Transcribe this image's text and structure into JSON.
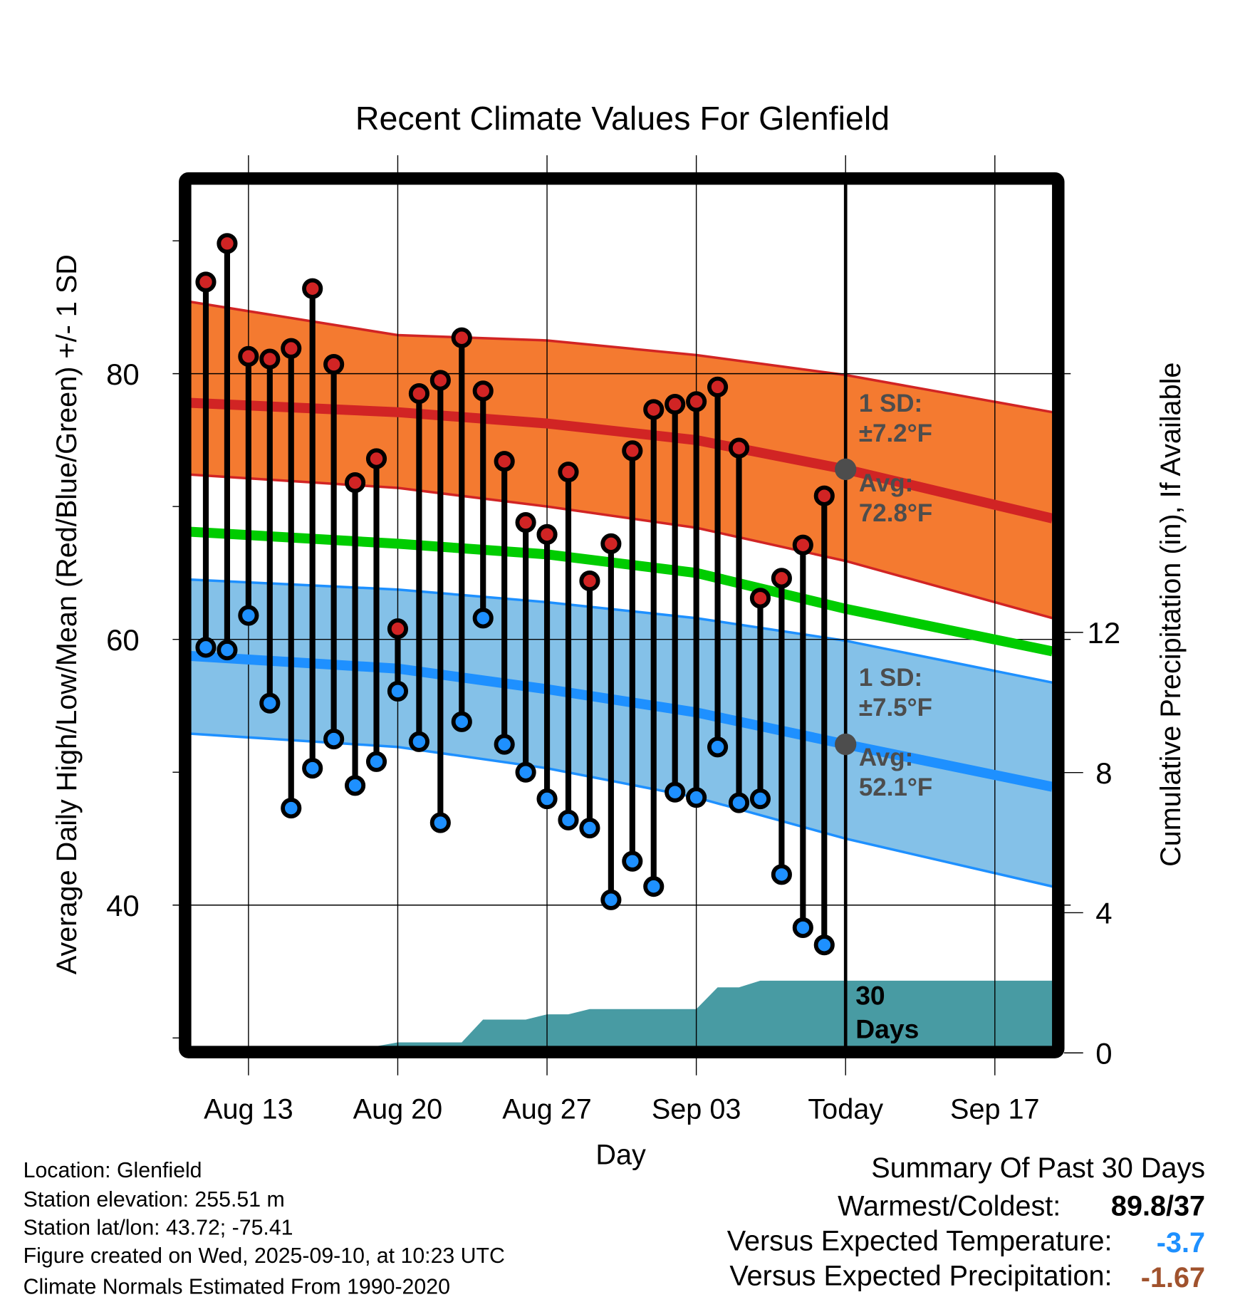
{
  "chart_data": {
    "type": "line",
    "title": "Recent Climate Values For Glenfield",
    "xlabel": "Day",
    "ylabel": "Average Daily High/Low/Mean (Red/Blue/Green) +/- 1 SD",
    "y2label": "Cumulative Precipitation (in), If Available",
    "xlim_days_from_today": [
      -30.7,
      9.7
    ],
    "ylim": [
      29.4,
      94.3
    ],
    "y2lim": [
      0,
      24.8
    ],
    "grid": true,
    "x_ticks": [
      {
        "day": -28,
        "label": "Aug 13"
      },
      {
        "day": -21,
        "label": "Aug 20"
      },
      {
        "day": -14,
        "label": "Aug 27"
      },
      {
        "day": -7,
        "label": "Sep 03"
      },
      {
        "day": 0,
        "label": "Today"
      },
      {
        "day": 7,
        "label": "Sep 17"
      }
    ],
    "y_ticks": [
      {
        "value": 40,
        "label": "40"
      },
      {
        "value": 60,
        "label": "60"
      },
      {
        "value": 80,
        "label": "80"
      }
    ],
    "y_minor_ticks": [
      30,
      50,
      70,
      90
    ],
    "y2_ticks": [
      {
        "value": 0,
        "label": "0"
      },
      {
        "value": 4,
        "label": "4"
      },
      {
        "value": 8,
        "label": "8"
      },
      {
        "value": 12,
        "label": "12"
      }
    ],
    "daily": {
      "days_from_today": [
        -30,
        -29,
        -28,
        -27,
        -26,
        -25,
        -24,
        -23,
        -22,
        -21,
        -20,
        -19,
        -18,
        -17,
        -16,
        -15,
        -14,
        -13,
        -12,
        -11,
        -10,
        -9,
        -8,
        -7,
        -6,
        -5,
        -4,
        -3,
        -2,
        -1
      ],
      "high": [
        86.9,
        89.8,
        81.3,
        81.1,
        81.9,
        86.4,
        80.7,
        71.8,
        73.6,
        60.8,
        78.5,
        79.5,
        82.7,
        78.7,
        73.4,
        68.8,
        67.9,
        72.6,
        64.4,
        67.2,
        74.2,
        77.3,
        77.7,
        77.9,
        79.0,
        74.4,
        63.1,
        64.6,
        67.1,
        70.8
      ],
      "low": [
        59.4,
        59.2,
        61.8,
        55.2,
        47.3,
        50.3,
        52.5,
        49.0,
        50.8,
        56.1,
        52.3,
        46.2,
        53.8,
        61.6,
        52.1,
        50.0,
        48.0,
        46.4,
        45.8,
        40.4,
        43.3,
        41.4,
        48.5,
        48.1,
        51.9,
        47.7,
        48.0,
        42.3,
        38.3,
        37.0
      ],
      "cumulative_precip": [
        0,
        0,
        0,
        0,
        0,
        0,
        0,
        0,
        0,
        0.3,
        0.3,
        0.3,
        0.3,
        0.95,
        0.95,
        0.95,
        1.1,
        1.1,
        1.25,
        1.25,
        1.25,
        1.25,
        1.25,
        1.25,
        1.87,
        1.87,
        2.06,
        2.06,
        2.06,
        2.06
      ]
    },
    "normals": {
      "days_from_today": [
        -30.7,
        -21,
        -14,
        -7,
        0,
        9.7
      ],
      "high_mean": [
        77.8,
        77.1,
        76.25,
        75.0,
        72.8,
        69.1
      ],
      "high_upper": [
        85.4,
        82.9,
        82.5,
        81.4,
        79.9,
        77.1
      ],
      "high_lower": [
        72.4,
        71.4,
        70.0,
        68.4,
        65.9,
        61.6
      ],
      "low_mean": [
        58.75,
        57.8,
        56.25,
        54.5,
        52.1,
        48.9
      ],
      "low_upper": [
        64.5,
        63.75,
        62.8,
        61.6,
        59.9,
        56.75
      ],
      "low_lower": [
        52.9,
        51.9,
        50.3,
        48.1,
        45.0,
        41.4
      ],
      "mean": [
        68.1,
        67.2,
        66.4,
        65.0,
        62.3,
        59.1
      ]
    },
    "annotations": {
      "high_sd_line1": "1 SD:",
      "high_sd_line2": "±7.2°F",
      "high_avg_line1": "Avg:",
      "high_avg_line2": "72.8°F",
      "high_avg_value": 72.8,
      "low_sd_line1": "1 SD:",
      "low_sd_line2": "±7.5°F",
      "low_avg_line1": "Avg:",
      "low_avg_line2": "52.1°F",
      "low_avg_value": 52.1,
      "precip_line1": "30",
      "precip_line2": "Days"
    },
    "colors": {
      "high_band": "#f47a30",
      "high_line": "#d12424",
      "low_band": "#84c1e8",
      "low_line": "#1e90ff",
      "mean_line": "#00cc00",
      "precip": "#489ba3",
      "annotation": "#4d4d4d"
    }
  },
  "info": {
    "location": "Location: Glenfield",
    "elevation": "Station elevation: 255.51 m",
    "latlon": "Station lat/lon: 43.72; -75.41",
    "created": "Figure created on Wed, 2025-09-10, at 10:23 UTC",
    "normals": "Climate Normals Estimated From 1990-2020"
  },
  "summary": {
    "title": "Summary Of Past 30 Days",
    "warmest_label": "Warmest/Coldest:",
    "warmest_value": "89.8/37",
    "temp_label": "Versus Expected Temperature:",
    "temp_value": "-3.7",
    "temp_color": "#1e90ff",
    "precip_label": "Versus Expected Precipitation:",
    "precip_value": "-1.67",
    "precip_color": "#a0522d"
  }
}
